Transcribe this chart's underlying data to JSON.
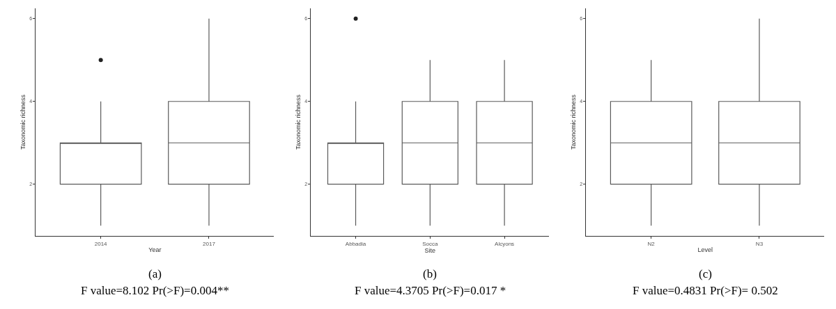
{
  "chart_data": [
    {
      "type": "box",
      "categories": [
        "2014",
        "2017"
      ],
      "xlabel": "Year",
      "ylabel": "Taxonomic richness",
      "ylim": [
        0.75,
        6.25
      ],
      "yticks": [
        2,
        4,
        6
      ],
      "color": "#595959",
      "boxes": [
        {
          "low": 1,
          "q1": 2,
          "median": 3,
          "q3": 3,
          "high": 4,
          "outliers": [
            5
          ]
        },
        {
          "low": 1,
          "q1": 2,
          "median": 3,
          "q3": 4,
          "high": 6
        }
      ],
      "annotations": [
        "(a)",
        "F value=8.102 Pr(>F)=0.004**"
      ]
    },
    {
      "type": "box",
      "categories": [
        "Abbadia",
        "Socca",
        "Alcyons"
      ],
      "xlabel": "Site",
      "ylabel": "Taxonomic richness",
      "ylim": [
        0.75,
        6.25
      ],
      "yticks": [
        2,
        4,
        6
      ],
      "color": "#595959",
      "boxes": [
        {
          "low": 1,
          "q1": 2,
          "median": 3,
          "q3": 3,
          "high": 4,
          "outliers": [
            6
          ]
        },
        {
          "low": 1,
          "q1": 2,
          "median": 3,
          "q3": 4,
          "high": 5
        },
        {
          "low": 1,
          "q1": 2,
          "median": 3,
          "q3": 4,
          "high": 5
        }
      ],
      "annotations": [
        "(b)",
        "F value=4.3705 Pr(>F)=0.017 *"
      ]
    },
    {
      "type": "box",
      "categories": [
        "N2",
        "N3"
      ],
      "xlabel": "Level",
      "ylabel": "Taxonomic richness",
      "ylim": [
        0.75,
        6.25
      ],
      "yticks": [
        2,
        4,
        6
      ],
      "color": "#595959",
      "boxes": [
        {
          "low": 1,
          "q1": 2,
          "median": 3,
          "q3": 4,
          "high": 5
        },
        {
          "low": 1,
          "q1": 2,
          "median": 3,
          "q3": 4,
          "high": 6
        }
      ],
      "annotations": [
        "(c)",
        "F value=0.4831 Pr(>F)= 0.502"
      ]
    }
  ]
}
